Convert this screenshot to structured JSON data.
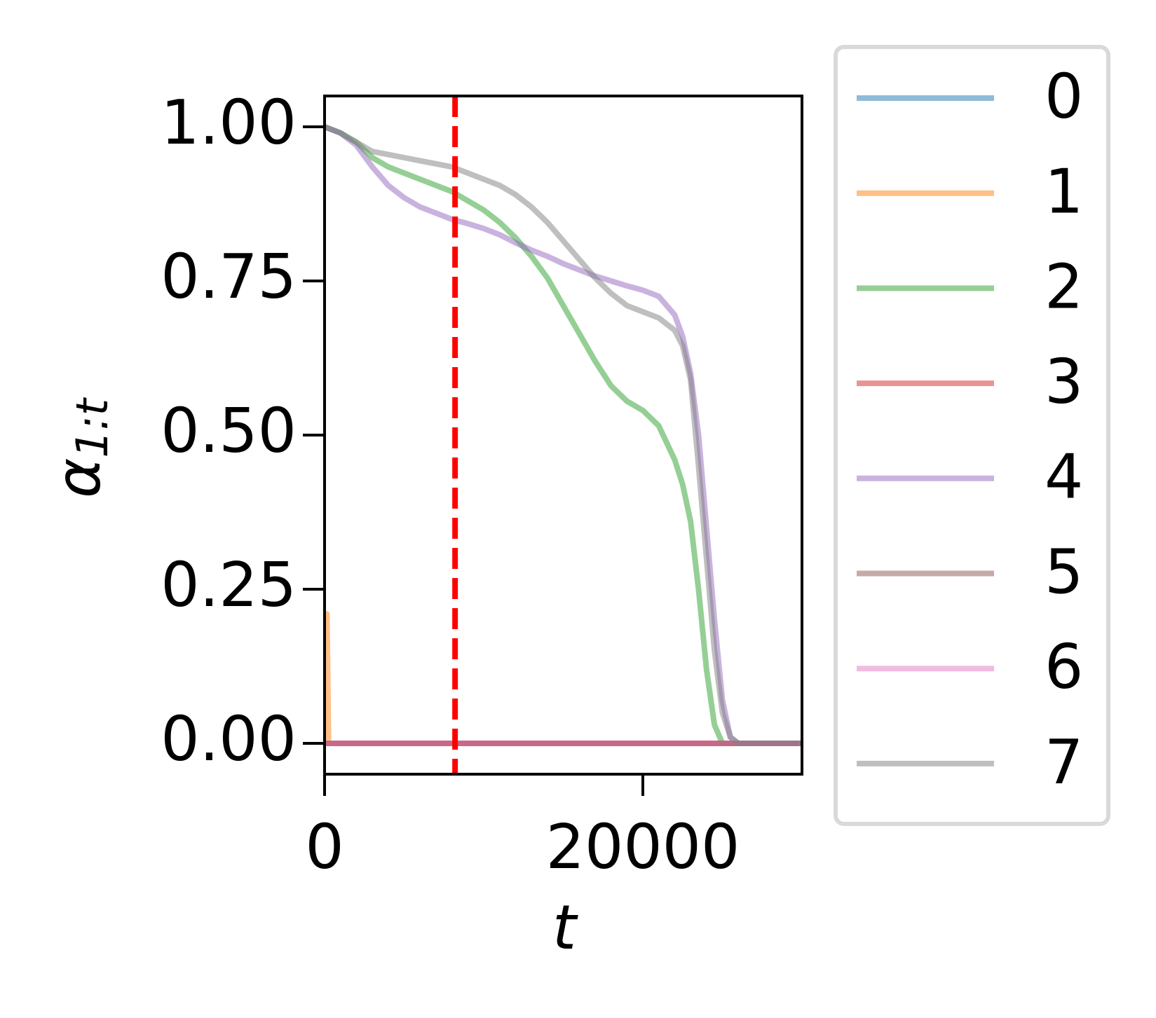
{
  "chart_data": {
    "type": "line",
    "xlabel": "t",
    "ylabel_main": "α",
    "ylabel_sub": "1:t",
    "x": [
      0,
      1000,
      2000,
      3000,
      4000,
      5000,
      6000,
      7000,
      8000,
      9000,
      10000,
      11000,
      12000,
      13000,
      14000,
      15000,
      16000,
      17000,
      18000,
      19000,
      20000,
      21000,
      22000,
      22500,
      23000,
      23500,
      24000,
      24500,
      25000,
      25500,
      26000,
      30000
    ],
    "series": [
      {
        "name": "0",
        "color": "#1f77b4",
        "values": [
          0,
          0,
          0,
          0,
          0,
          0,
          0,
          0,
          0,
          0,
          0,
          0,
          0,
          0,
          0,
          0,
          0,
          0,
          0,
          0,
          0,
          0,
          0,
          0,
          0,
          0,
          0,
          0,
          0,
          0,
          0,
          0
        ]
      },
      {
        "name": "1",
        "color": "#ff7f0e",
        "x": [
          0,
          150,
          250,
          30000
        ],
        "values": [
          0.21,
          0.21,
          0,
          0
        ]
      },
      {
        "name": "2",
        "color": "#2ca02c",
        "values": [
          1.0,
          0.99,
          0.975,
          0.95,
          0.935,
          0.925,
          0.915,
          0.905,
          0.895,
          0.88,
          0.865,
          0.845,
          0.82,
          0.79,
          0.755,
          0.71,
          0.665,
          0.62,
          0.58,
          0.555,
          0.54,
          0.515,
          0.46,
          0.42,
          0.36,
          0.25,
          0.12,
          0.03,
          0,
          0,
          0,
          0
        ]
      },
      {
        "name": "3",
        "color": "#d62728",
        "values": [
          0,
          0,
          0,
          0,
          0,
          0,
          0,
          0,
          0,
          0,
          0,
          0,
          0,
          0,
          0,
          0,
          0,
          0,
          0,
          0,
          0,
          0,
          0,
          0,
          0,
          0,
          0,
          0,
          0,
          0,
          0,
          0
        ]
      },
      {
        "name": "4",
        "color": "#9467bd",
        "values": [
          1.0,
          0.99,
          0.97,
          0.935,
          0.905,
          0.885,
          0.87,
          0.86,
          0.85,
          0.843,
          0.835,
          0.825,
          0.812,
          0.8,
          0.79,
          0.778,
          0.768,
          0.758,
          0.75,
          0.742,
          0.735,
          0.725,
          0.695,
          0.66,
          0.6,
          0.5,
          0.35,
          0.2,
          0.07,
          0.01,
          0,
          0
        ]
      },
      {
        "name": "5",
        "color": "#8c564b",
        "values": [
          0,
          0,
          0,
          0,
          0,
          0,
          0,
          0,
          0,
          0,
          0,
          0,
          0,
          0,
          0,
          0,
          0,
          0,
          0,
          0,
          0,
          0,
          0,
          0,
          0,
          0,
          0,
          0,
          0,
          0,
          0,
          0
        ]
      },
      {
        "name": "6",
        "color": "#e377c2",
        "values": [
          0,
          0,
          0,
          0,
          0,
          0,
          0,
          0,
          0,
          0,
          0,
          0,
          0,
          0,
          0,
          0,
          0,
          0,
          0,
          0,
          0,
          0,
          0,
          0,
          0,
          0,
          0,
          0,
          0,
          0,
          0,
          0
        ]
      },
      {
        "name": "7",
        "color": "#7f7f7f",
        "values": [
          1.0,
          0.99,
          0.975,
          0.96,
          0.955,
          0.95,
          0.945,
          0.94,
          0.935,
          0.925,
          0.915,
          0.905,
          0.89,
          0.87,
          0.845,
          0.815,
          0.785,
          0.755,
          0.73,
          0.71,
          0.7,
          0.69,
          0.67,
          0.645,
          0.59,
          0.45,
          0.3,
          0.15,
          0.05,
          0.01,
          0,
          0
        ]
      }
    ],
    "line_alpha": 0.5,
    "vline": {
      "x": 8200,
      "color": "#ff0000"
    },
    "xlim": [
      0,
      30000
    ],
    "xticks": [
      0,
      20000
    ],
    "ylim": [
      -0.05,
      1.05
    ],
    "yticks": [
      {
        "value": 0,
        "label": "0.00"
      },
      {
        "value": 0.25,
        "label": "0.25"
      },
      {
        "value": 0.5,
        "label": "0.50"
      },
      {
        "value": 0.75,
        "label": "0.75"
      },
      {
        "value": 1,
        "label": "1.00"
      }
    ],
    "legend": "outside-right"
  }
}
